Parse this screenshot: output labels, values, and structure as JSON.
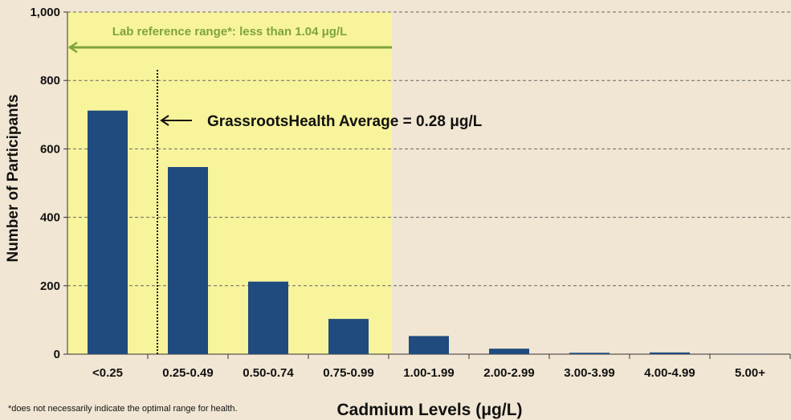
{
  "chart_data": {
    "type": "bar",
    "categories": [
      "<0.25",
      "0.25-0.49",
      "0.50-0.74",
      "0.75-0.99",
      "1.00-1.99",
      "2.00-2.99",
      "3.00-3.99",
      "4.00-4.99",
      "5.00+"
    ],
    "values": [
      712,
      547,
      212,
      103,
      53,
      16,
      4,
      5,
      1
    ],
    "ylabel": "Number of Participants",
    "xlabel": "Cadmium Levels (μg/L)",
    "ylim": [
      0,
      1000
    ],
    "yticks": [
      "0",
      "200",
      "400",
      "600",
      "800",
      "1,000"
    ],
    "ytick_values": [
      0,
      200,
      400,
      600,
      800,
      1000
    ],
    "grid": "dashed horizontal",
    "colors": {
      "bar": "#1f4b7e",
      "reference_band": "#f8f49b",
      "reference_arrow": "#7ea53a",
      "grid": "#666666",
      "background": "#f1e6d3"
    },
    "reference_range": {
      "label": "Lab reference range*: less than 1.04 μg/L",
      "x_end": 1.04
    },
    "average_line": {
      "label": "GrassrootsHealth Average = 0.28 μg/L",
      "x_value": 0.28
    }
  },
  "footnote": "*does not necessarily indicate the optimal range for health."
}
